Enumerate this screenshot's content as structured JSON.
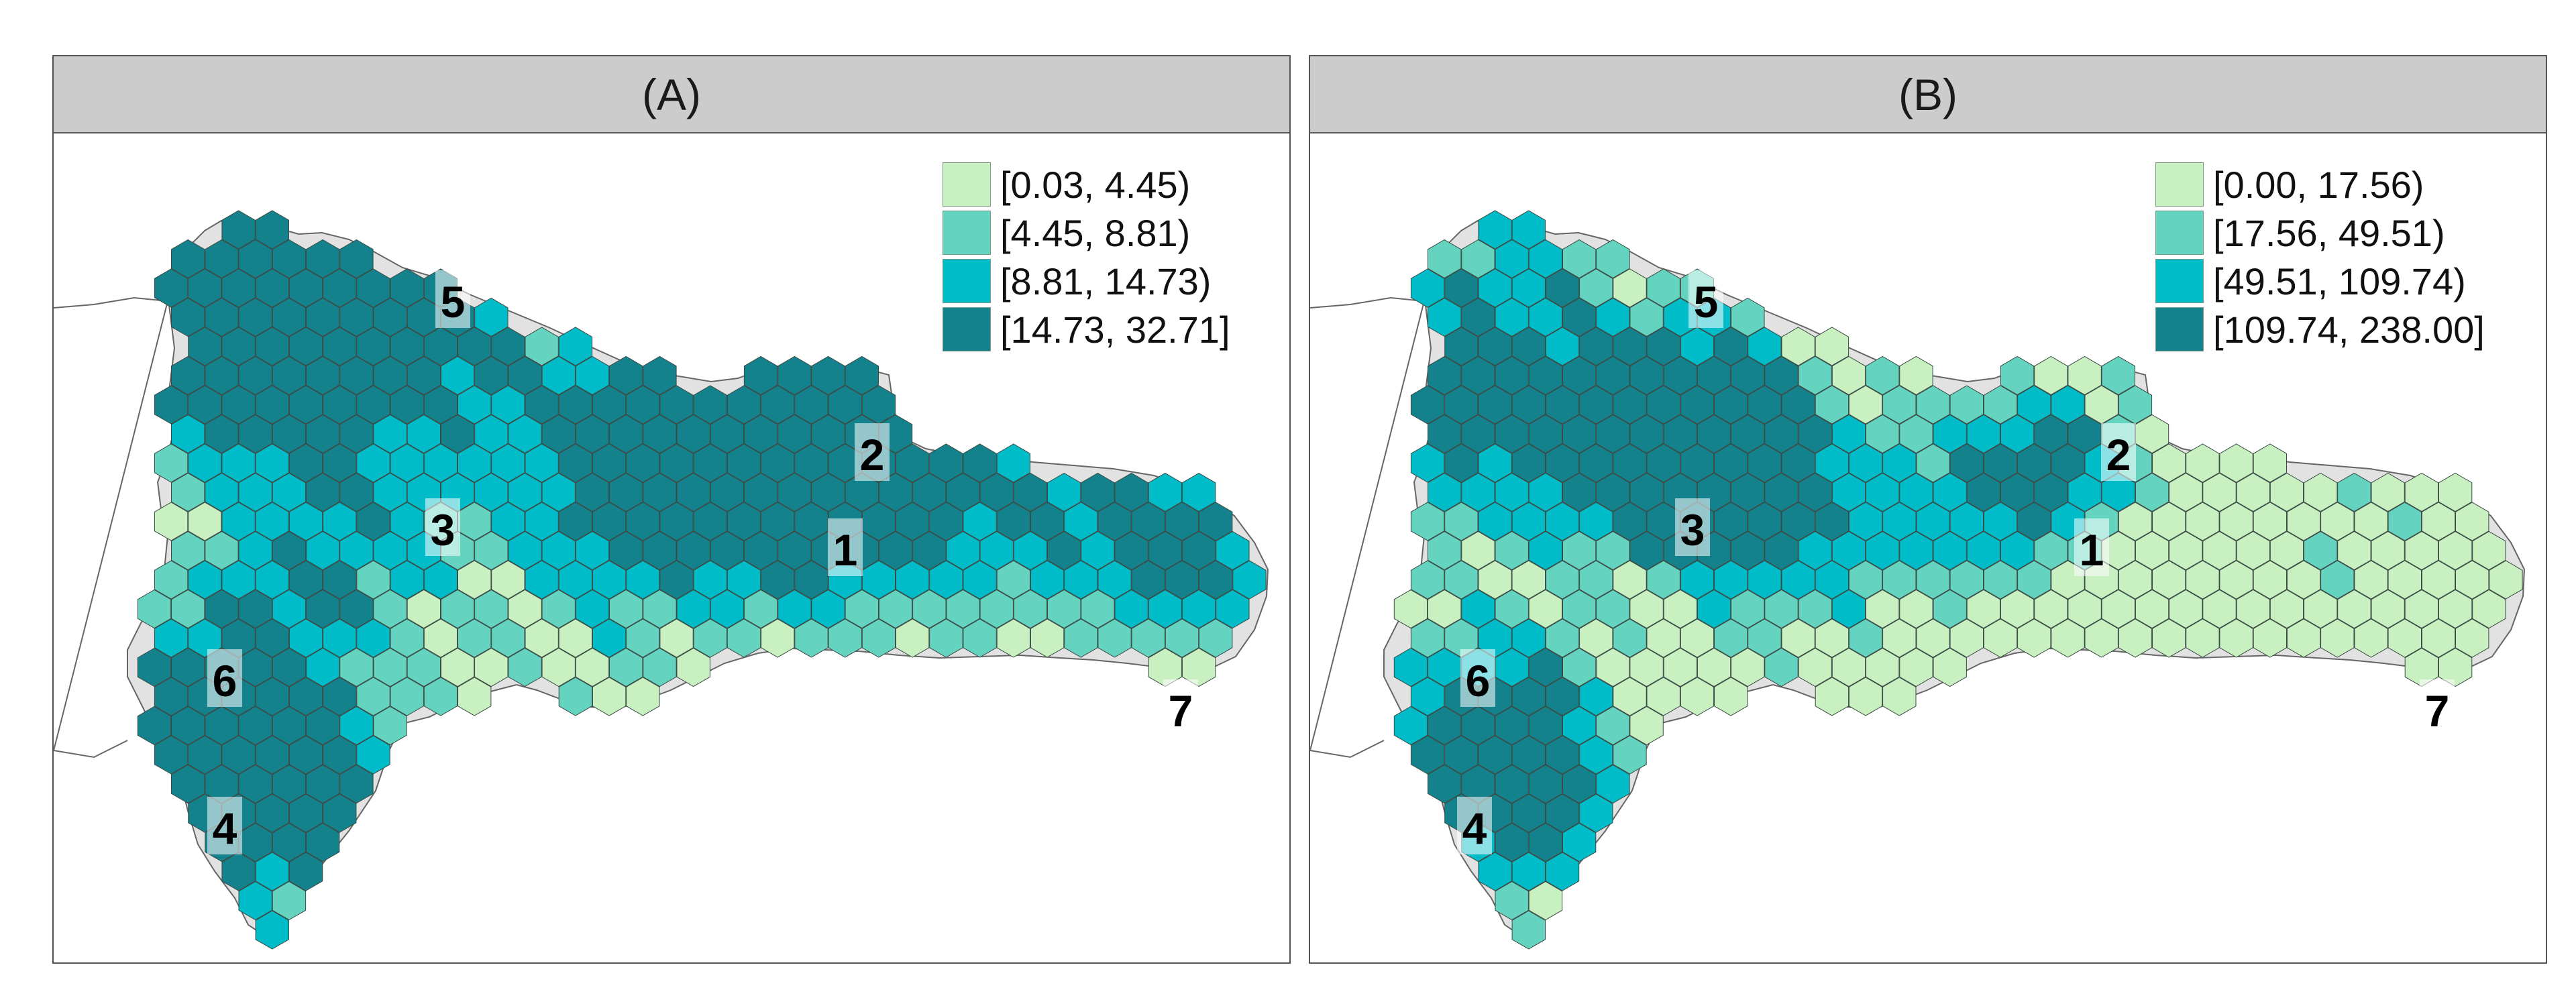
{
  "colors": {
    "class1": "#c8f0c0",
    "class2": "#64d4c0",
    "class3": "#00bcc8",
    "class4": "#14828c",
    "land_gray": "#e2e2e2",
    "coast": "#666666",
    "hex_border": "#3a4a44"
  },
  "panels": [
    {
      "id": "A",
      "title": "(A)",
      "legend": [
        "[0.03, 4.45)",
        "[4.45, 8.81)",
        "[8.81, 14.73)",
        "[14.73, 32.71]"
      ],
      "region_labels": [
        "1",
        "2",
        "3",
        "4",
        "5",
        "6",
        "7"
      ]
    },
    {
      "id": "B",
      "title": "(B)",
      "legend": [
        "[0.00, 17.56)",
        "[17.56, 49.51)",
        "[49.51, 109.74)",
        "[109.74, 238.00]"
      ],
      "region_labels": [
        "1",
        "2",
        "3",
        "4",
        "5",
        "6",
        "7"
      ]
    }
  ]
}
